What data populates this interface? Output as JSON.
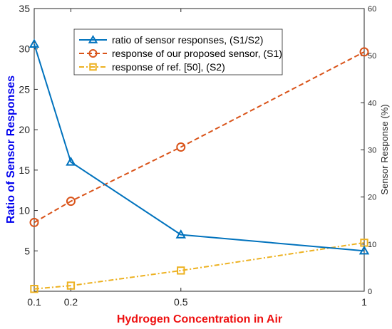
{
  "chart_data": {
    "type": "line",
    "xlabel": "Hydrogen Concentration in Air",
    "ylabel_left": "Ratio of Sensor Responses",
    "ylabel_right": "Sensor Response (%)",
    "xlim": [
      0.1,
      1
    ],
    "ylim_left": [
      0,
      35
    ],
    "ylim_right": [
      0,
      60
    ],
    "x_ticks": [
      0.1,
      0.2,
      0.5,
      1
    ],
    "y_ticks_left": [
      5,
      10,
      15,
      20,
      25,
      30,
      35
    ],
    "y_ticks_right": [
      0,
      10,
      20,
      30,
      40,
      50,
      60
    ],
    "grid": false,
    "legend_position": "top-center",
    "series": [
      {
        "name": "ratio of sensor responses, (S1/S2)",
        "axis": "left",
        "x": [
          0.1,
          0.2,
          0.5,
          1
        ],
        "values": [
          30.6,
          16.0,
          7.0,
          5.0
        ],
        "color": "#0072BD",
        "marker": "triangle",
        "line_style": "solid"
      },
      {
        "name": "response of our proposed sensor, (S1)",
        "axis": "right",
        "x": [
          0.1,
          0.2,
          0.5,
          1
        ],
        "values": [
          14.6,
          19.1,
          30.6,
          50.8
        ],
        "color": "#D95319",
        "marker": "circle",
        "line_style": "dashed"
      },
      {
        "name": "response of ref. [50], (S2)",
        "axis": "right",
        "x": [
          0.1,
          0.2,
          0.5,
          1
        ],
        "values": [
          0.5,
          1.2,
          4.4,
          10.3
        ],
        "color": "#EDB120",
        "marker": "square",
        "line_style": "dashdot"
      }
    ],
    "colors": {
      "left_axis_label": "#0000EE",
      "x_axis_label": "#EE1111"
    }
  }
}
